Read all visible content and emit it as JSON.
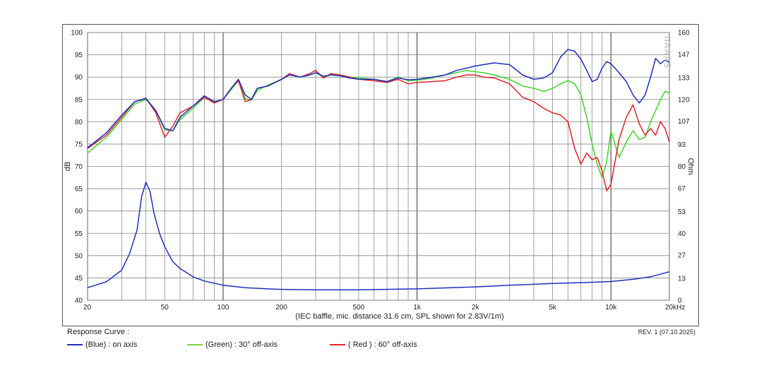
{
  "chart_data": {
    "type": "line",
    "xscale": "log",
    "xlim": [
      20,
      20000
    ],
    "ylim": [
      40,
      100
    ],
    "y2lim": [
      0,
      160
    ],
    "ylabel": "dB",
    "y2label": "Ohm",
    "caption": "(IEC baffle, mic. distance 31.6 cm, SPL shown for 2.83V/1m)",
    "x_tick_labels": [
      {
        "v": 20,
        "t": "20"
      },
      {
        "v": 50,
        "t": "50"
      },
      {
        "v": 100,
        "t": "100"
      },
      {
        "v": 200,
        "t": "200"
      },
      {
        "v": 500,
        "t": "500"
      },
      {
        "v": 1000,
        "t": "1k"
      },
      {
        "v": 2000,
        "t": "2k"
      },
      {
        "v": 5000,
        "t": "5k"
      },
      {
        "v": 10000,
        "t": "10k"
      },
      {
        "v": 20000,
        "t": "20kHz"
      }
    ],
    "y_ticks": [
      100,
      95,
      90,
      85,
      80,
      75,
      70,
      65,
      60,
      55,
      50,
      45,
      40
    ],
    "y2_ticks": [
      "160",
      "147",
      "133",
      "120",
      "107",
      "93",
      "80",
      "67",
      "53",
      "40",
      "27",
      "13",
      "0"
    ],
    "watermark": "IIAAAS",
    "grid": true,
    "series": [
      {
        "name": "(Blue)  : on axis",
        "color": "#1f2fbf",
        "x": [
          20,
          25,
          30,
          35,
          40,
          45,
          50,
          55,
          60,
          70,
          80,
          90,
          100,
          110,
          120,
          130,
          140,
          150,
          170,
          200,
          220,
          250,
          280,
          300,
          330,
          360,
          400,
          450,
          500,
          600,
          700,
          800,
          900,
          1000,
          1200,
          1400,
          1600,
          1800,
          2000,
          2200,
          2500,
          3000,
          3500,
          4000,
          4500,
          5000,
          5500,
          6000,
          6500,
          7000,
          7500,
          8000,
          8500,
          9000,
          9500,
          10000,
          11000,
          12000,
          13000,
          14000,
          15000,
          16000,
          17000,
          18000,
          19000,
          20000
        ],
        "y": [
          74.2,
          77.5,
          81.5,
          84.5,
          85.2,
          82.5,
          78.5,
          78,
          81,
          83.5,
          85.8,
          84.5,
          85,
          87.5,
          89.5,
          86,
          85,
          87.5,
          88,
          89.5,
          90.5,
          90,
          90.5,
          91,
          90.2,
          90.5,
          90.3,
          89.8,
          89.5,
          89.5,
          89,
          89.8,
          89.4,
          89.5,
          90,
          90.5,
          91.5,
          92,
          92.5,
          92.8,
          93.2,
          92.8,
          90.5,
          89.5,
          89.8,
          91,
          94.5,
          96.2,
          95.8,
          94,
          91.5,
          89,
          89.5,
          92,
          93.5,
          93,
          91,
          89,
          86,
          84.2,
          86,
          90,
          94.2,
          93,
          93.8,
          93.3
        ]
      },
      {
        "name": "(Green) : 30° off-axis",
        "color": "#3fd62a",
        "x": [
          20,
          25,
          30,
          35,
          40,
          45,
          50,
          55,
          60,
          70,
          80,
          90,
          100,
          110,
          120,
          130,
          140,
          150,
          170,
          200,
          220,
          250,
          280,
          300,
          330,
          360,
          400,
          450,
          500,
          600,
          700,
          800,
          900,
          1000,
          1200,
          1400,
          1600,
          1800,
          2000,
          2200,
          2500,
          3000,
          3500,
          4000,
          4500,
          5000,
          5500,
          6000,
          6500,
          7000,
          7500,
          8000,
          8500,
          9000,
          9500,
          10000,
          11000,
          12000,
          13000,
          14000,
          15000,
          16000,
          17000,
          18000,
          19000,
          20000
        ],
        "y": [
          73,
          76.5,
          80.5,
          84,
          85,
          82.5,
          78.2,
          78,
          80.5,
          83,
          85.5,
          84.3,
          85,
          87.2,
          89.2,
          85.2,
          84.8,
          87,
          88.2,
          89.5,
          90.5,
          90,
          90.5,
          91,
          90,
          90.5,
          90.5,
          90,
          89.8,
          89.5,
          89,
          90,
          89.2,
          89.3,
          89.8,
          90.5,
          91,
          91.5,
          91.2,
          91,
          90.5,
          89.5,
          88,
          87.5,
          86.8,
          87.5,
          88.5,
          89.2,
          88.5,
          86,
          81,
          75,
          70.5,
          67.5,
          71,
          78,
          72,
          75.5,
          78,
          76,
          76.5,
          80,
          82.5,
          85,
          86.8,
          86.5
        ]
      },
      {
        "name": "( Red ) : 60° off-axis",
        "color": "#e0232a",
        "x": [
          20,
          25,
          30,
          35,
          40,
          45,
          50,
          55,
          60,
          70,
          80,
          90,
          100,
          110,
          120,
          130,
          140,
          150,
          170,
          200,
          220,
          250,
          280,
          300,
          330,
          360,
          400,
          450,
          500,
          600,
          700,
          800,
          900,
          1000,
          1200,
          1400,
          1600,
          1800,
          2000,
          2200,
          2500,
          3000,
          3500,
          4000,
          4500,
          5000,
          5500,
          6000,
          6500,
          7000,
          7500,
          8000,
          8500,
          9000,
          9500,
          10000,
          11000,
          12000,
          13000,
          14000,
          15000,
          16000,
          17000,
          18000,
          19000,
          20000
        ],
        "y": [
          74,
          77,
          81,
          84.5,
          85.3,
          82,
          76.5,
          79,
          82,
          83.5,
          85.5,
          84.2,
          85,
          87.5,
          89.2,
          84.5,
          85,
          87.5,
          88,
          89.5,
          90.8,
          90,
          90.8,
          91.5,
          89.8,
          90.8,
          90.5,
          90,
          89.5,
          89.2,
          88.8,
          89.5,
          88.5,
          88.8,
          89,
          89.2,
          90,
          90.5,
          90.5,
          90,
          89.8,
          88.5,
          85.5,
          84.5,
          83,
          82,
          81.5,
          80,
          74,
          70.5,
          73,
          71.5,
          72,
          69,
          64.5,
          66,
          76,
          81,
          83.8,
          79.5,
          77,
          78.5,
          77,
          80,
          78.5,
          75.5
        ]
      },
      {
        "name": "Impedance",
        "color": "#1f2fbf",
        "axis": "right",
        "x": [
          20,
          25,
          30,
          33,
          36,
          38,
          40,
          42,
          44,
          47,
          50,
          55,
          60,
          70,
          80,
          100,
          130,
          170,
          200,
          300,
          500,
          1000,
          2000,
          3000,
          5000,
          7000,
          10000,
          13000,
          16000,
          20000
        ],
        "y": [
          7.5,
          11,
          18,
          28,
          42,
          62,
          70.5,
          65,
          52,
          40,
          32,
          23,
          19,
          14,
          11.5,
          9,
          7.5,
          6.8,
          6.5,
          6.2,
          6.2,
          6.8,
          8,
          9,
          10,
          10.5,
          11.2,
          12.5,
          14,
          17
        ]
      }
    ]
  },
  "legend": {
    "title": "Response Curve :",
    "items": [
      {
        "label": "(Blue)  : on axis",
        "color": "#1f2fbf"
      },
      {
        "label": "(Green) : 30° off-axis",
        "color": "#7fd43a"
      },
      {
        "label": "( Red ) : 60° off-axis",
        "color": "#e0232a"
      }
    ]
  },
  "revision": "REV. 1 (07.10.2025)"
}
